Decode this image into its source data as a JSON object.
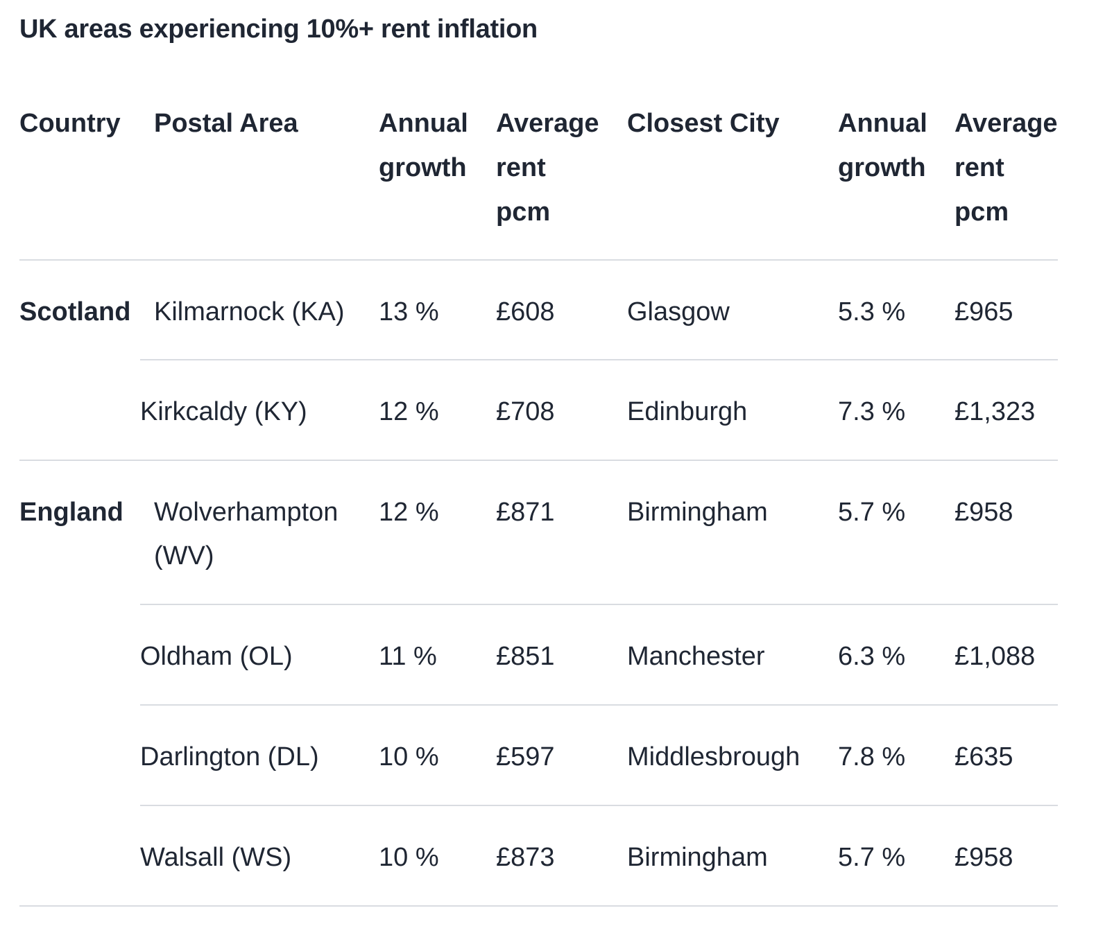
{
  "title": "UK areas experiencing 10%+ rent inflation",
  "table": {
    "headers": {
      "country": "Country",
      "postal_area": "Postal Area",
      "annual_growth_1": [
        "Annual",
        "growth"
      ],
      "average_rent_1": [
        "Average",
        "rent",
        "pcm"
      ],
      "closest_city": "Closest City",
      "annual_growth_2": [
        "Annual",
        "growth"
      ],
      "average_rent_2": [
        "Average",
        "rent",
        "pcm"
      ]
    },
    "rows": [
      {
        "country": "Scotland",
        "postal_area": [
          "Kilmarnock (KA)"
        ],
        "growth": "13 %",
        "rent": "£608",
        "city": "Glasgow",
        "city_growth": "5.3 %",
        "city_rent": "£965"
      },
      {
        "country": "",
        "postal_area": [
          "Kirkcaldy (KY)"
        ],
        "growth": "12 %",
        "rent": "£708",
        "city": "Edinburgh",
        "city_growth": "7.3 %",
        "city_rent": "£1,323"
      },
      {
        "country": "England",
        "postal_area": [
          "Wolverhampton",
          "(WV)"
        ],
        "growth": "12 %",
        "rent": "£871",
        "city": "Birmingham",
        "city_growth": "5.7 %",
        "city_rent": "£958"
      },
      {
        "country": "",
        "postal_area": [
          "Oldham (OL)"
        ],
        "growth": "11 %",
        "rent": "£851",
        "city": "Manchester",
        "city_growth": "6.3 %",
        "city_rent": "£1,088"
      },
      {
        "country": "",
        "postal_area": [
          "Darlington (DL)"
        ],
        "growth": "10 %",
        "rent": "£597",
        "city": "Middlesbrough",
        "city_growth": "7.8 %",
        "city_rent": "£635"
      },
      {
        "country": "",
        "postal_area": [
          "Walsall (WS)"
        ],
        "growth": "10 %",
        "rent": "£873",
        "city": "Birmingham",
        "city_growth": "5.7 %",
        "city_rent": "£958"
      }
    ]
  },
  "colors": {
    "text": "#1f2633",
    "rule": "#d9dce1",
    "background": "#ffffff"
  }
}
